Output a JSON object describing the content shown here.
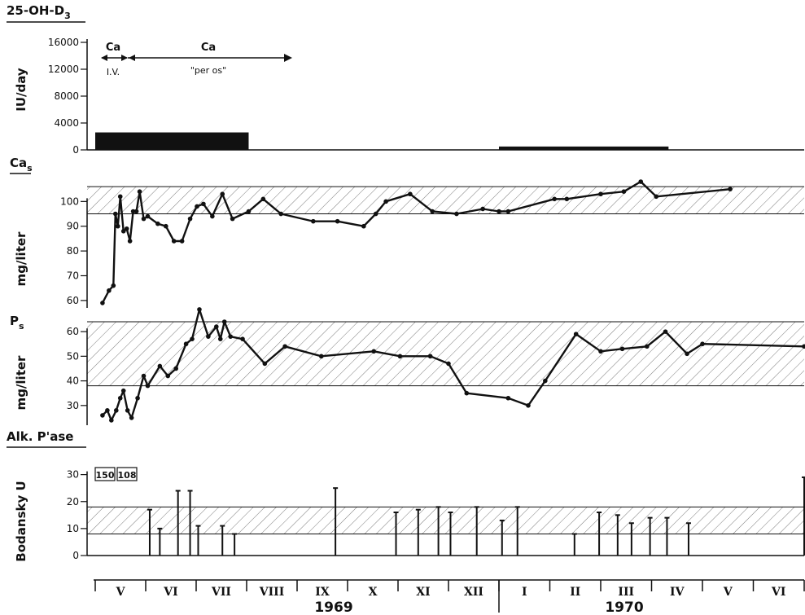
{
  "chart_data": [
    {
      "type": "bar",
      "id": "dose",
      "title": "25-OH-D3",
      "ylabel": "IU/day",
      "yticks": [
        0,
        4000,
        8000,
        12000,
        16000
      ],
      "ylim": [
        0,
        16000
      ],
      "bars": [
        {
          "x_start": 1969.0,
          "x_end": 1969.38,
          "value": 2600
        },
        {
          "x_start": 1970.0,
          "x_end": 1970.55,
          "value": 500
        }
      ],
      "annotations": [
        {
          "label": "Ca",
          "sub": "I.V.",
          "x_start": 1969.0,
          "x_end": 1969.06
        },
        {
          "label": "Ca",
          "sub": "\"per os\"",
          "x_start": 1969.06,
          "x_end": 1969.38
        }
      ]
    },
    {
      "type": "line",
      "id": "ca",
      "title": "Ca",
      "title_sub": "s",
      "ylabel": "mg/liter",
      "yticks": [
        60,
        70,
        80,
        90,
        100
      ],
      "ylim": [
        57,
        109
      ],
      "normal_range": [
        95,
        106
      ],
      "points": [
        [
          1969.018,
          59
        ],
        [
          1969.034,
          64
        ],
        [
          1969.045,
          66
        ],
        [
          1969.05,
          95
        ],
        [
          1969.056,
          90
        ],
        [
          1969.062,
          102
        ],
        [
          1969.07,
          88
        ],
        [
          1969.078,
          89
        ],
        [
          1969.086,
          84
        ],
        [
          1969.094,
          96
        ],
        [
          1969.102,
          96
        ],
        [
          1969.11,
          104
        ],
        [
          1969.12,
          93
        ],
        [
          1969.13,
          94
        ],
        [
          1969.155,
          91
        ],
        [
          1969.175,
          90
        ],
        [
          1969.195,
          84
        ],
        [
          1969.215,
          84
        ],
        [
          1969.235,
          93
        ],
        [
          1969.252,
          98
        ],
        [
          1969.268,
          99
        ],
        [
          1969.29,
          94
        ],
        [
          1969.315,
          103
        ],
        [
          1969.34,
          93
        ],
        [
          1969.38,
          96
        ],
        [
          1969.416,
          101
        ],
        [
          1969.46,
          95
        ],
        [
          1969.54,
          92
        ],
        [
          1969.6,
          92
        ],
        [
          1969.665,
          90
        ],
        [
          1969.695,
          95
        ],
        [
          1969.72,
          100
        ],
        [
          1969.78,
          103
        ],
        [
          1969.835,
          96
        ],
        [
          1969.895,
          95
        ],
        [
          1969.96,
          97
        ],
        [
          1970.0,
          96
        ],
        [
          1970.03,
          96
        ],
        [
          1970.18,
          101
        ],
        [
          1970.22,
          101
        ],
        [
          1970.33,
          103
        ],
        [
          1970.405,
          104
        ],
        [
          1970.46,
          108
        ],
        [
          1970.51,
          102
        ],
        [
          1970.75,
          105
        ]
      ]
    },
    {
      "type": "line",
      "id": "p",
      "title": "P",
      "title_sub": "s",
      "ylabel": "mg/liter",
      "yticks": [
        30,
        40,
        50,
        60
      ],
      "ylim": [
        22,
        65
      ],
      "normal_range": [
        38,
        64
      ],
      "points": [
        [
          1969.018,
          26
        ],
        [
          1969.03,
          28
        ],
        [
          1969.04,
          24
        ],
        [
          1969.052,
          28
        ],
        [
          1969.062,
          33
        ],
        [
          1969.07,
          36
        ],
        [
          1969.08,
          28
        ],
        [
          1969.09,
          25
        ],
        [
          1969.105,
          33
        ],
        [
          1969.12,
          42
        ],
        [
          1969.13,
          38
        ],
        [
          1969.16,
          46
        ],
        [
          1969.18,
          42
        ],
        [
          1969.2,
          45
        ],
        [
          1969.225,
          55
        ],
        [
          1969.24,
          57
        ],
        [
          1969.258,
          69
        ],
        [
          1969.28,
          58
        ],
        [
          1969.3,
          62
        ],
        [
          1969.31,
          57
        ],
        [
          1969.32,
          64
        ],
        [
          1969.335,
          58
        ],
        [
          1969.365,
          57
        ],
        [
          1969.42,
          47
        ],
        [
          1969.47,
          54
        ],
        [
          1969.56,
          50
        ],
        [
          1969.69,
          52
        ],
        [
          1969.755,
          50
        ],
        [
          1969.83,
          50
        ],
        [
          1969.875,
          47
        ],
        [
          1969.92,
          35
        ],
        [
          1970.03,
          33
        ],
        [
          1970.095,
          30
        ],
        [
          1970.15,
          40
        ],
        [
          1970.25,
          59
        ],
        [
          1970.33,
          52
        ],
        [
          1970.4,
          53
        ],
        [
          1970.48,
          54
        ],
        [
          1970.54,
          60
        ],
        [
          1970.61,
          51
        ],
        [
          1970.66,
          55
        ],
        [
          1970.99,
          54
        ]
      ]
    },
    {
      "type": "bar",
      "id": "alk",
      "title": "Alk. P'ase",
      "ylabel": "Bodansky U",
      "yticks": [
        0,
        10,
        20,
        30
      ],
      "ylim": [
        0,
        32
      ],
      "normal_range": [
        8,
        18
      ],
      "off_scale_labels": [
        "150",
        "108"
      ],
      "values": [
        {
          "x": 1969.135,
          "v": 17
        },
        {
          "x": 1969.16,
          "v": 10
        },
        {
          "x": 1969.205,
          "v": 24
        },
        {
          "x": 1969.235,
          "v": 24
        },
        {
          "x": 1969.255,
          "v": 11
        },
        {
          "x": 1969.315,
          "v": 11
        },
        {
          "x": 1969.345,
          "v": 8
        },
        {
          "x": 1969.595,
          "v": 25
        },
        {
          "x": 1969.745,
          "v": 16
        },
        {
          "x": 1969.8,
          "v": 17
        },
        {
          "x": 1969.85,
          "v": 18
        },
        {
          "x": 1969.88,
          "v": 16
        },
        {
          "x": 1969.945,
          "v": 18
        },
        {
          "x": 1970.01,
          "v": 13
        },
        {
          "x": 1970.06,
          "v": 18
        },
        {
          "x": 1970.245,
          "v": 8
        },
        {
          "x": 1970.325,
          "v": 16
        },
        {
          "x": 1970.385,
          "v": 15
        },
        {
          "x": 1970.43,
          "v": 12
        },
        {
          "x": 1970.49,
          "v": 14
        },
        {
          "x": 1970.545,
          "v": 14
        },
        {
          "x": 1970.615,
          "v": 12
        },
        {
          "x": 1970.99,
          "v": 29
        }
      ]
    }
  ],
  "axis": {
    "months": [
      "V",
      "VI",
      "VII",
      "VIII",
      "IX",
      "X",
      "XI",
      "XII",
      "I",
      "II",
      "III",
      "IV",
      "V",
      "VI"
    ],
    "years": [
      "1969",
      "1970"
    ]
  },
  "labels": {
    "dose_title": "25-OH-D3",
    "dose_title_main": "25-OH-D",
    "dose_title_sub": "3",
    "dose_ylabel": "IU/day",
    "ca_iv": "Ca",
    "ca_iv_sub": "I.V.",
    "ca_os": "Ca",
    "ca_os_sub": "\"per os\"",
    "ca_title": "Ca",
    "ca_title_sub": "s",
    "ca_ylabel": "mg/liter",
    "p_title": "P",
    "p_title_sub": "s",
    "p_ylabel": "mg/liter",
    "alk_title": "Alk. P'ase",
    "alk_ylabel": "Bodansky U",
    "off_scale_1": "150",
    "off_scale_2": "108"
  }
}
